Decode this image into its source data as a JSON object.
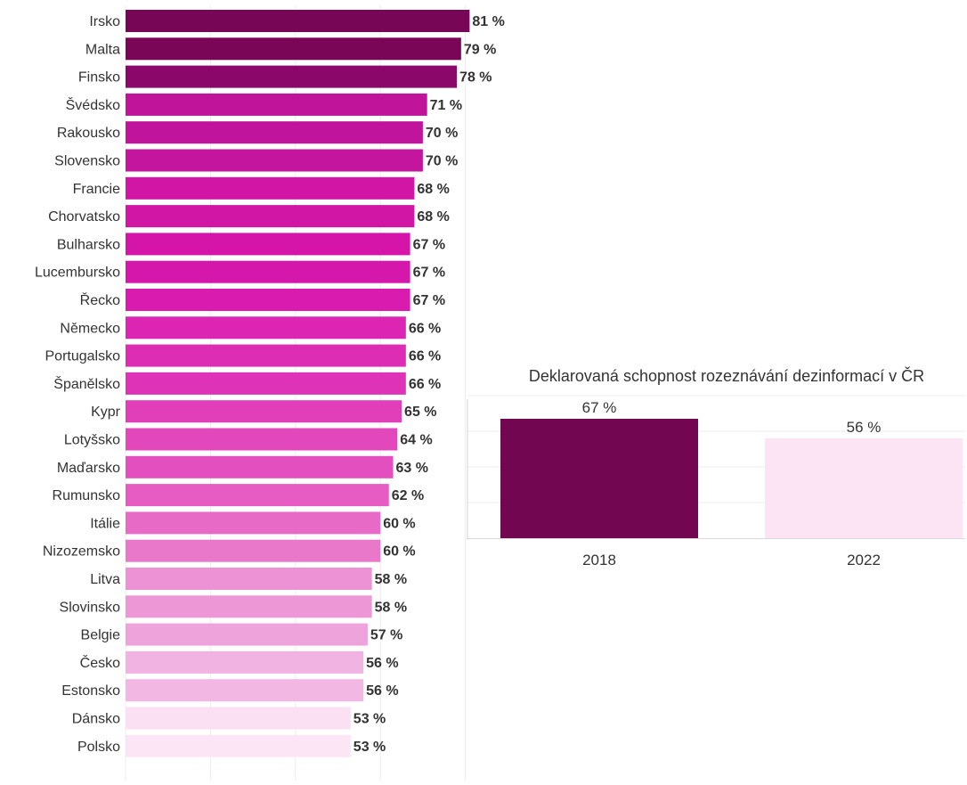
{
  "chart_data": [
    {
      "type": "bar",
      "orientation": "horizontal",
      "title": "",
      "xlabel": "",
      "ylabel": "",
      "value_suffix": " %",
      "categories": [
        "Irsko",
        "Malta",
        "Finsko",
        "Švédsko",
        "Rakousko",
        "Slovensko",
        "Francie",
        "Chorvatsko",
        "Bulharsko",
        "Lucembursko",
        "Řecko",
        "Německo",
        "Portugalsko",
        "Španělsko",
        "Kypr",
        "Lotyšsko",
        "Maďarsko",
        "Rumunsko",
        "Itálie",
        "Nizozemsko",
        "Litva",
        "Slovinsko",
        "Belgie",
        "Česko",
        "Estonsko",
        "Dánsko",
        "Polsko"
      ],
      "values": [
        81,
        79,
        78,
        71,
        70,
        70,
        68,
        68,
        67,
        67,
        67,
        66,
        66,
        66,
        65,
        64,
        63,
        62,
        60,
        60,
        58,
        58,
        57,
        56,
        56,
        53,
        53
      ],
      "value_labels": [
        "81 %",
        "79 %",
        "78 %",
        "71 %",
        "70 %",
        "70 %",
        "68 %",
        "68 %",
        "67 %",
        "67 %",
        "67 %",
        "66 %",
        "66 %",
        "66 %",
        "65 %",
        "64 %",
        "63 %",
        "62 %",
        "60 %",
        "60 %",
        "58 %",
        "58 %",
        "57 %",
        "56 %",
        "56 %",
        "53 %",
        "53 %"
      ],
      "colors": [
        "#780656",
        "#790657",
        "#8b086a",
        "#c0149b",
        "#c1149c",
        "#c3159d",
        "#d116a6",
        "#d116a6",
        "#d515aa",
        "#d617ac",
        "#d91baf",
        "#dc26b3",
        "#dd2db5",
        "#df33b7",
        "#e13eba",
        "#e247bc",
        "#e44fbf",
        "#e65cc2",
        "#e86ac7",
        "#e978cb",
        "#ed93d5",
        "#ed97d7",
        "#efa3db",
        "#f1b3e1",
        "#f2b8e3",
        "#fbdff3",
        "#fce6f6"
      ],
      "grid": true,
      "legend": "none"
    },
    {
      "type": "bar",
      "orientation": "vertical",
      "title": "Deklarovaná schopnost rozeznávání dezinformací v ČR",
      "xlabel": "",
      "ylabel": "",
      "categories": [
        "2018",
        "2022"
      ],
      "values": [
        67,
        56
      ],
      "value_labels": [
        "67 %",
        "56 %"
      ],
      "colors": [
        "#720650",
        "#fce4f5"
      ],
      "grid": true,
      "legend": "none"
    }
  ]
}
